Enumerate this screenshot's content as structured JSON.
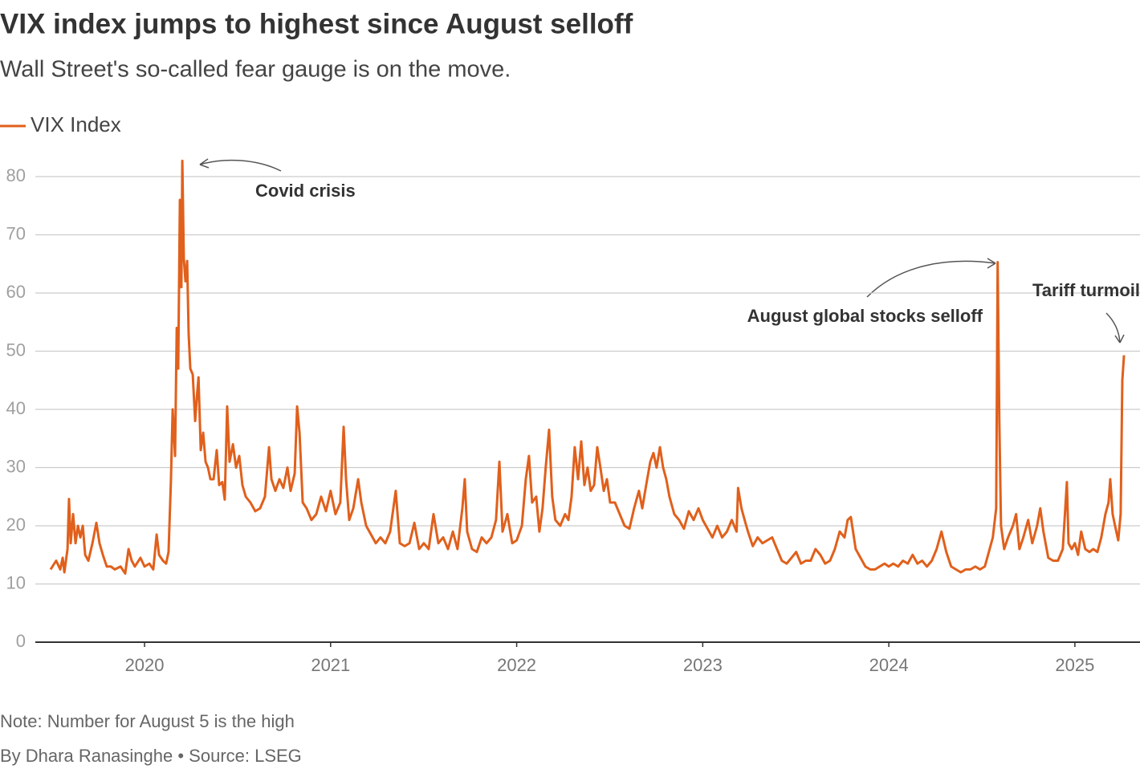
{
  "chart_data": {
    "type": "line",
    "title": "VIX index jumps to highest since August selloff",
    "subtitle": "Wall Street's so-called fear gauge is on the move.",
    "note": "Note: Number for August 5 is the high",
    "source": "By Dhara Ranasinghe • Source: LSEG",
    "legend": "top-left",
    "grid": true,
    "annotations": [
      "Covid crisis",
      "August global stocks  selloff",
      "Tariff turmoil"
    ],
    "xlim": [
      2019.413,
      2025.35
    ],
    "xticks": [
      2020,
      2021,
      2022,
      2023,
      2024,
      2025
    ],
    "ylim": [
      0,
      85
    ],
    "yticks": [
      0,
      10,
      20,
      30,
      40,
      50,
      60,
      70,
      80
    ],
    "x": [
      2019.495,
      2019.525,
      2019.547,
      2019.56,
      2019.569,
      2019.586,
      2019.594,
      2019.603,
      2019.616,
      2019.629,
      2019.642,
      2019.655,
      2019.668,
      2019.681,
      2019.698,
      2019.72,
      2019.741,
      2019.758,
      2019.776,
      2019.797,
      2019.819,
      2019.84,
      2019.871,
      2019.896,
      2019.914,
      2019.931,
      2019.948,
      2019.978,
      2020.0,
      2020.026,
      2020.047,
      2020.065,
      2020.078,
      2020.099,
      2020.116,
      2020.129,
      2020.142,
      2020.151,
      2020.164,
      2020.173,
      2020.181,
      2020.19,
      2020.198,
      2020.203,
      2020.211,
      2020.22,
      2020.229,
      2020.237,
      2020.246,
      2020.259,
      2020.272,
      2020.281,
      2020.29,
      2020.302,
      2020.315,
      2020.328,
      2020.341,
      2020.354,
      2020.371,
      2020.388,
      2020.401,
      2020.418,
      2020.431,
      2020.444,
      2020.457,
      2020.475,
      2020.492,
      2020.509,
      2020.526,
      2020.544,
      2020.569,
      2020.595,
      2020.621,
      2020.647,
      2020.669,
      2020.682,
      2020.703,
      2020.725,
      2020.746,
      2020.768,
      2020.785,
      2020.807,
      2020.82,
      2020.833,
      2020.85,
      2020.871,
      2020.897,
      2020.923,
      2020.949,
      2020.975,
      2021.0,
      2021.026,
      2021.052,
      2021.07,
      2021.083,
      2021.1,
      2021.122,
      2021.148,
      2021.165,
      2021.191,
      2021.217,
      2021.243,
      2021.268,
      2021.294,
      2021.32,
      2021.35,
      2021.372,
      2021.398,
      2021.424,
      2021.45,
      2021.476,
      2021.501,
      2021.527,
      2021.553,
      2021.579,
      2021.605,
      2021.631,
      2021.657,
      2021.682,
      2021.708,
      2021.721,
      2021.734,
      2021.76,
      2021.786,
      2021.812,
      2021.838,
      2021.864,
      2021.889,
      2021.907,
      2021.924,
      2021.95,
      2021.976,
      2022.0,
      2022.028,
      2022.049,
      2022.066,
      2022.083,
      2022.105,
      2022.122,
      2022.139,
      2022.156,
      2022.174,
      2022.191,
      2022.208,
      2022.234,
      2022.26,
      2022.278,
      2022.295,
      2022.312,
      2022.33,
      2022.347,
      2022.364,
      2022.381,
      2022.398,
      2022.416,
      2022.433,
      2022.45,
      2022.468,
      2022.485,
      2022.502,
      2022.528,
      2022.554,
      2022.58,
      2022.606,
      2022.631,
      2022.657,
      2022.675,
      2022.696,
      2022.718,
      2022.735,
      2022.752,
      2022.77,
      2022.787,
      2022.804,
      2022.821,
      2022.847,
      2022.873,
      2022.899,
      2022.925,
      2022.951,
      2022.977,
      2023.0,
      2023.026,
      2023.052,
      2023.078,
      2023.104,
      2023.13,
      2023.156,
      2023.182,
      2023.19,
      2023.208,
      2023.225,
      2023.243,
      2023.269,
      2023.295,
      2023.321,
      2023.347,
      2023.373,
      2023.399,
      2023.425,
      2023.451,
      2023.477,
      2023.502,
      2023.528,
      2023.554,
      2023.58,
      2023.606,
      2023.632,
      2023.658,
      2023.684,
      2023.71,
      2023.736,
      2023.762,
      2023.779,
      2023.796,
      2023.822,
      2023.848,
      2023.874,
      2023.9,
      2023.926,
      2023.951,
      2023.977,
      2024.0,
      2024.024,
      2024.05,
      2024.076,
      2024.102,
      2024.128,
      2024.154,
      2024.179,
      2024.205,
      2024.231,
      2024.257,
      2024.283,
      2024.309,
      2024.335,
      2024.361,
      2024.387,
      2024.413,
      2024.439,
      2024.465,
      2024.49,
      2024.516,
      2024.542,
      2024.559,
      2024.577,
      2024.585,
      2024.594,
      2024.603,
      2024.62,
      2024.641,
      2024.667,
      2024.684,
      2024.702,
      2024.723,
      2024.749,
      2024.771,
      2024.797,
      2024.814,
      2024.831,
      2024.857,
      2024.883,
      2024.909,
      2024.935,
      2024.957,
      2024.966,
      2024.983,
      2025.0,
      2025.017,
      2025.034,
      2025.056,
      2025.078,
      2025.099,
      2025.121,
      2025.142,
      2025.164,
      2025.181,
      2025.19,
      2025.203,
      2025.216,
      2025.233,
      2025.246,
      2025.255,
      2025.264
    ],
    "series": [
      {
        "name": "VIX Index",
        "color": "#e0601c",
        "values": [
          12.5,
          14,
          12.5,
          14.5,
          12,
          16,
          24.6,
          17,
          22,
          17,
          20,
          18,
          20,
          15,
          14,
          17,
          20.5,
          17,
          15,
          13,
          13,
          12.5,
          13,
          11.8,
          16,
          14,
          13,
          14.5,
          13,
          13.5,
          12.5,
          18.5,
          15,
          14,
          13.5,
          15.5,
          28,
          40,
          32,
          54,
          47,
          76,
          61,
          82.7,
          66,
          62,
          65.5,
          53,
          47,
          46,
          38,
          42,
          45.5,
          33,
          36,
          31,
          30,
          28,
          28,
          33,
          27,
          27.5,
          24.5,
          40.5,
          31,
          34,
          30,
          32,
          27,
          25,
          24,
          22.5,
          23,
          25,
          33.5,
          28,
          26,
          28,
          26.5,
          30,
          26,
          29,
          40.5,
          36,
          24,
          23,
          21,
          22,
          25,
          22.5,
          26,
          22,
          24,
          37,
          28,
          21,
          23,
          28,
          24,
          20,
          18.5,
          17,
          18,
          17,
          19,
          26,
          17,
          16.5,
          17,
          20.5,
          16,
          17,
          16,
          22,
          17,
          18,
          16,
          19,
          16,
          23,
          28,
          19,
          16,
          15.5,
          18,
          17,
          18,
          21,
          31,
          19,
          22,
          17,
          17.5,
          20,
          28,
          32,
          24,
          25,
          19,
          23,
          30,
          36.5,
          25,
          21,
          20,
          22,
          21,
          25,
          33.5,
          28,
          34.5,
          27,
          30,
          26,
          27,
          33.5,
          30,
          26,
          28,
          24,
          24,
          22,
          20,
          19.5,
          23,
          26,
          23,
          27,
          31,
          32.5,
          30,
          33.5,
          30,
          28,
          25,
          22,
          21,
          19.5,
          22.5,
          21,
          23,
          21,
          19.5,
          18,
          20,
          18,
          19,
          21,
          19,
          26.5,
          23,
          21,
          19,
          16.5,
          18,
          17,
          17.5,
          18,
          16,
          14,
          13.5,
          14.5,
          15.5,
          13.5,
          14,
          14,
          16,
          15,
          13.5,
          14,
          16,
          19,
          18,
          21,
          21.5,
          16,
          14.5,
          13,
          12.5,
          12.5,
          13,
          13.5,
          13,
          13.5,
          13,
          14,
          13.5,
          15,
          13.5,
          14,
          13,
          14,
          16,
          19,
          15.5,
          13,
          12.5,
          12,
          12.5,
          12.5,
          13,
          12.5,
          13,
          16,
          18,
          23,
          65.3,
          38,
          20,
          16,
          18,
          20,
          22,
          16,
          18,
          21,
          17,
          20,
          23,
          19,
          14.5,
          14,
          14,
          16,
          27.5,
          17,
          16,
          17,
          15,
          19,
          16,
          15.5,
          16,
          15.5,
          18,
          22,
          24,
          28,
          22,
          20,
          17.5,
          22,
          45,
          49.3
        ]
      }
    ]
  }
}
